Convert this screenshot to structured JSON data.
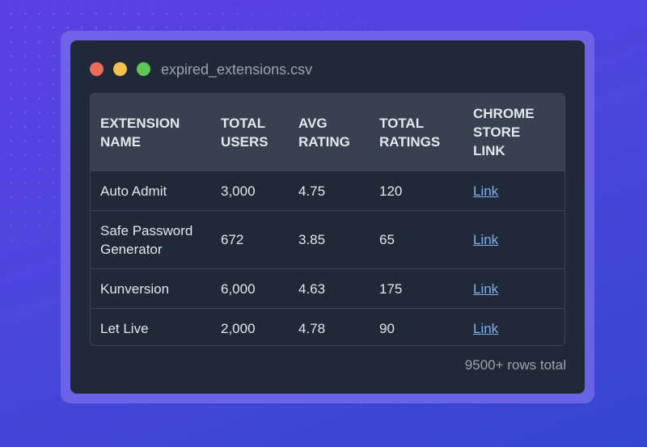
{
  "window": {
    "title": "expired_extensions.csv",
    "controls": {
      "close": "#ec6b5e",
      "minimize": "#f4c04f",
      "maximize": "#61c554"
    }
  },
  "table": {
    "headers": [
      "EXTENSION NAME",
      "TOTAL USERS",
      "AVG RATING",
      "TOTAL RATINGS",
      "CHROME STORE LINK"
    ],
    "rows": [
      {
        "name": "Auto Admit",
        "users": "3,000",
        "rating": "4.75",
        "ratings": "120",
        "link": "Link"
      },
      {
        "name": "Safe Password Generator",
        "users": "672",
        "rating": "3.85",
        "ratings": "65",
        "link": "Link"
      },
      {
        "name": "Kunversion",
        "users": "6,000",
        "rating": "4.63",
        "ratings": "175",
        "link": "Link"
      },
      {
        "name": "Let Live",
        "users": "2,000",
        "rating": "4.78",
        "ratings": "90",
        "link": "Link"
      }
    ]
  },
  "footer": {
    "row_count": "9500+ rows total"
  }
}
